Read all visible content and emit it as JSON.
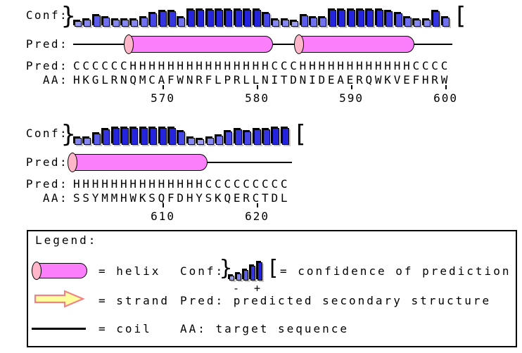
{
  "blocks": [
    {
      "conf_label": "Conf:",
      "cartoon_label": "Pred:",
      "pred_label": "Pred:",
      "aa_label": "AA:",
      "conf": [
        2,
        3,
        5,
        4,
        3,
        3,
        3,
        4,
        6,
        7,
        7,
        4,
        8,
        8,
        8,
        8,
        8,
        8,
        8,
        8,
        6,
        3,
        3,
        2,
        5,
        4,
        4,
        8,
        8,
        8,
        8,
        8,
        8,
        7,
        6,
        4,
        3,
        3,
        7,
        4
      ],
      "pred": "CCCCCCHHHHHHHHHHHHHHHCCCHHHHHHHHHHHHCCCC",
      "aa": "HKGLRNQMCAFWNRFLPRLLNITDNIDEAERQWKVEFHRW",
      "helices": [
        [
          7,
          21
        ],
        [
          25,
          36
        ]
      ],
      "ticks": [
        {
          "pos": 10,
          "label": "570"
        },
        {
          "pos": 20,
          "label": "580"
        },
        {
          "pos": 30,
          "label": "590"
        },
        {
          "pos": 40,
          "label": "600"
        }
      ]
    },
    {
      "conf_label": "Conf:",
      "cartoon_label": "Pred:",
      "pred_label": "Pred:",
      "aa_label": "AA:",
      "conf": [
        3,
        3,
        5,
        7,
        8,
        8,
        8,
        8,
        8,
        8,
        8,
        6,
        3,
        2,
        3,
        4,
        6,
        7,
        6,
        7,
        7,
        8,
        8
      ],
      "pred": "HHHHHHHHHHHHHHCCCCCCCCC",
      "aa": "SSYMMHWKSQFDHYSKQERCTDL",
      "helices": [
        [
          1,
          14
        ]
      ],
      "ticks": [
        {
          "pos": 10,
          "label": "610"
        },
        {
          "pos": 20,
          "label": "620"
        }
      ]
    }
  ],
  "brackets": {
    "start": "}",
    "end": "["
  },
  "legend": {
    "title": "Legend:",
    "helix_label": "= helix",
    "strand_label": "= strand",
    "coil_label": "= coil",
    "conf_label": "Conf:",
    "conf_desc": "= confidence of prediction",
    "conf_minus": "-",
    "conf_plus": "+",
    "pred_desc": "Pred: predicted secondary structure",
    "aa_desc": "AA: target sequence",
    "conf_bars": [
      2,
      3,
      5,
      7,
      9
    ]
  },
  "colors": {
    "helix_body": "#fb7efb",
    "helix_cap": "#ffb6c8",
    "strand_fill": "#ffffa0",
    "strand_stroke": "#ef8484",
    "coil": "#000000",
    "bar_palette": [
      {
        "max": 2,
        "color": "#9b9bf3"
      },
      {
        "max": 3,
        "color": "#8787f1"
      },
      {
        "max": 4,
        "color": "#7171ef"
      },
      {
        "max": 5,
        "color": "#5c5ceb"
      },
      {
        "max": 6,
        "color": "#4747e7"
      },
      {
        "max": 7,
        "color": "#3434e3"
      },
      {
        "max": 9,
        "color": "#2424df"
      }
    ]
  }
}
